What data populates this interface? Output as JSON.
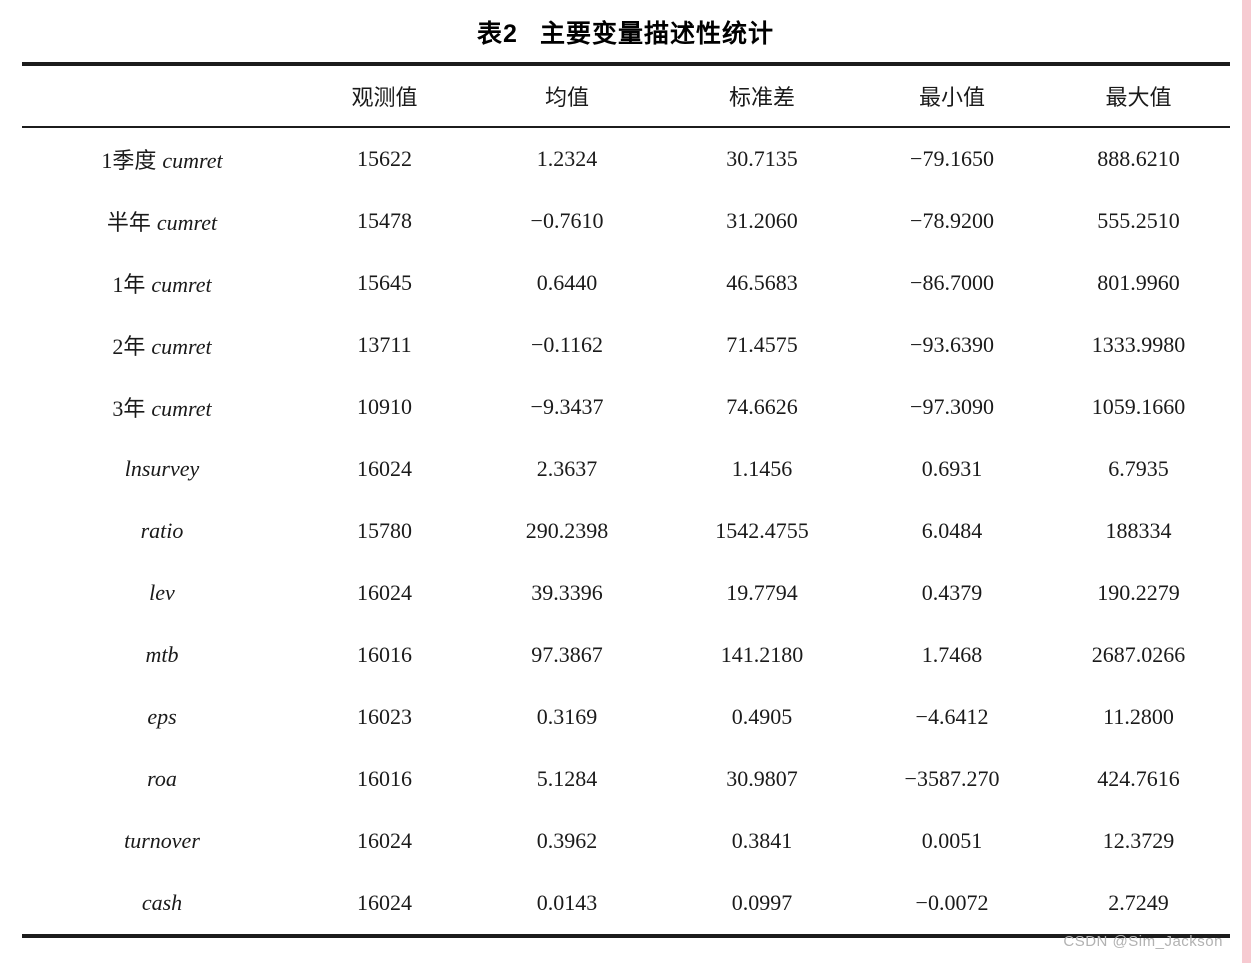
{
  "title": {
    "tag": "表2",
    "text": "主要变量描述性统计"
  },
  "columns": [
    "观测值",
    "均值",
    "标准差",
    "最小值",
    "最大值"
  ],
  "rows": [
    {
      "label_cn": "1季度",
      "label_var": "cumret",
      "values": [
        "15622",
        "1.2324",
        "30.7135",
        "−79.1650",
        "888.6210"
      ]
    },
    {
      "label_cn": "半年",
      "label_var": "cumret",
      "values": [
        "15478",
        "−0.7610",
        "31.2060",
        "−78.9200",
        "555.2510"
      ]
    },
    {
      "label_cn": "1年",
      "label_var": "cumret",
      "values": [
        "15645",
        "0.6440",
        "46.5683",
        "−86.7000",
        "801.9960"
      ]
    },
    {
      "label_cn": "2年",
      "label_var": "cumret",
      "values": [
        "13711",
        "−0.1162",
        "71.4575",
        "−93.6390",
        "1333.9980"
      ]
    },
    {
      "label_cn": "3年",
      "label_var": "cumret",
      "values": [
        "10910",
        "−9.3437",
        "74.6626",
        "−97.3090",
        "1059.1660"
      ]
    },
    {
      "label_cn": "",
      "label_var": "lnsurvey",
      "values": [
        "16024",
        "2.3637",
        "1.1456",
        "0.6931",
        "6.7935"
      ]
    },
    {
      "label_cn": "",
      "label_var": "ratio",
      "values": [
        "15780",
        "290.2398",
        "1542.4755",
        "6.0484",
        "188334"
      ]
    },
    {
      "label_cn": "",
      "label_var": "lev",
      "values": [
        "16024",
        "39.3396",
        "19.7794",
        "0.4379",
        "190.2279"
      ]
    },
    {
      "label_cn": "",
      "label_var": "mtb",
      "values": [
        "16016",
        "97.3867",
        "141.2180",
        "1.7468",
        "2687.0266"
      ]
    },
    {
      "label_cn": "",
      "label_var": "eps",
      "values": [
        "16023",
        "0.3169",
        "0.4905",
        "−4.6412",
        "11.2800"
      ]
    },
    {
      "label_cn": "",
      "label_var": "roa",
      "values": [
        "16016",
        "5.1284",
        "30.9807",
        "−3587.270",
        "424.7616"
      ]
    },
    {
      "label_cn": "",
      "label_var": "turnover",
      "values": [
        "16024",
        "0.3962",
        "0.3841",
        "0.0051",
        "12.3729"
      ]
    },
    {
      "label_cn": "",
      "label_var": "cash",
      "values": [
        "16024",
        "0.0143",
        "0.0997",
        "−0.0072",
        "2.7249"
      ]
    }
  ],
  "watermark": "CSDN @Sim_Jackson",
  "colors": {
    "rule_black": "#1c1c1c",
    "watermark_gray": "#b2b2b2",
    "csdn_pink": "#f7cad1"
  }
}
